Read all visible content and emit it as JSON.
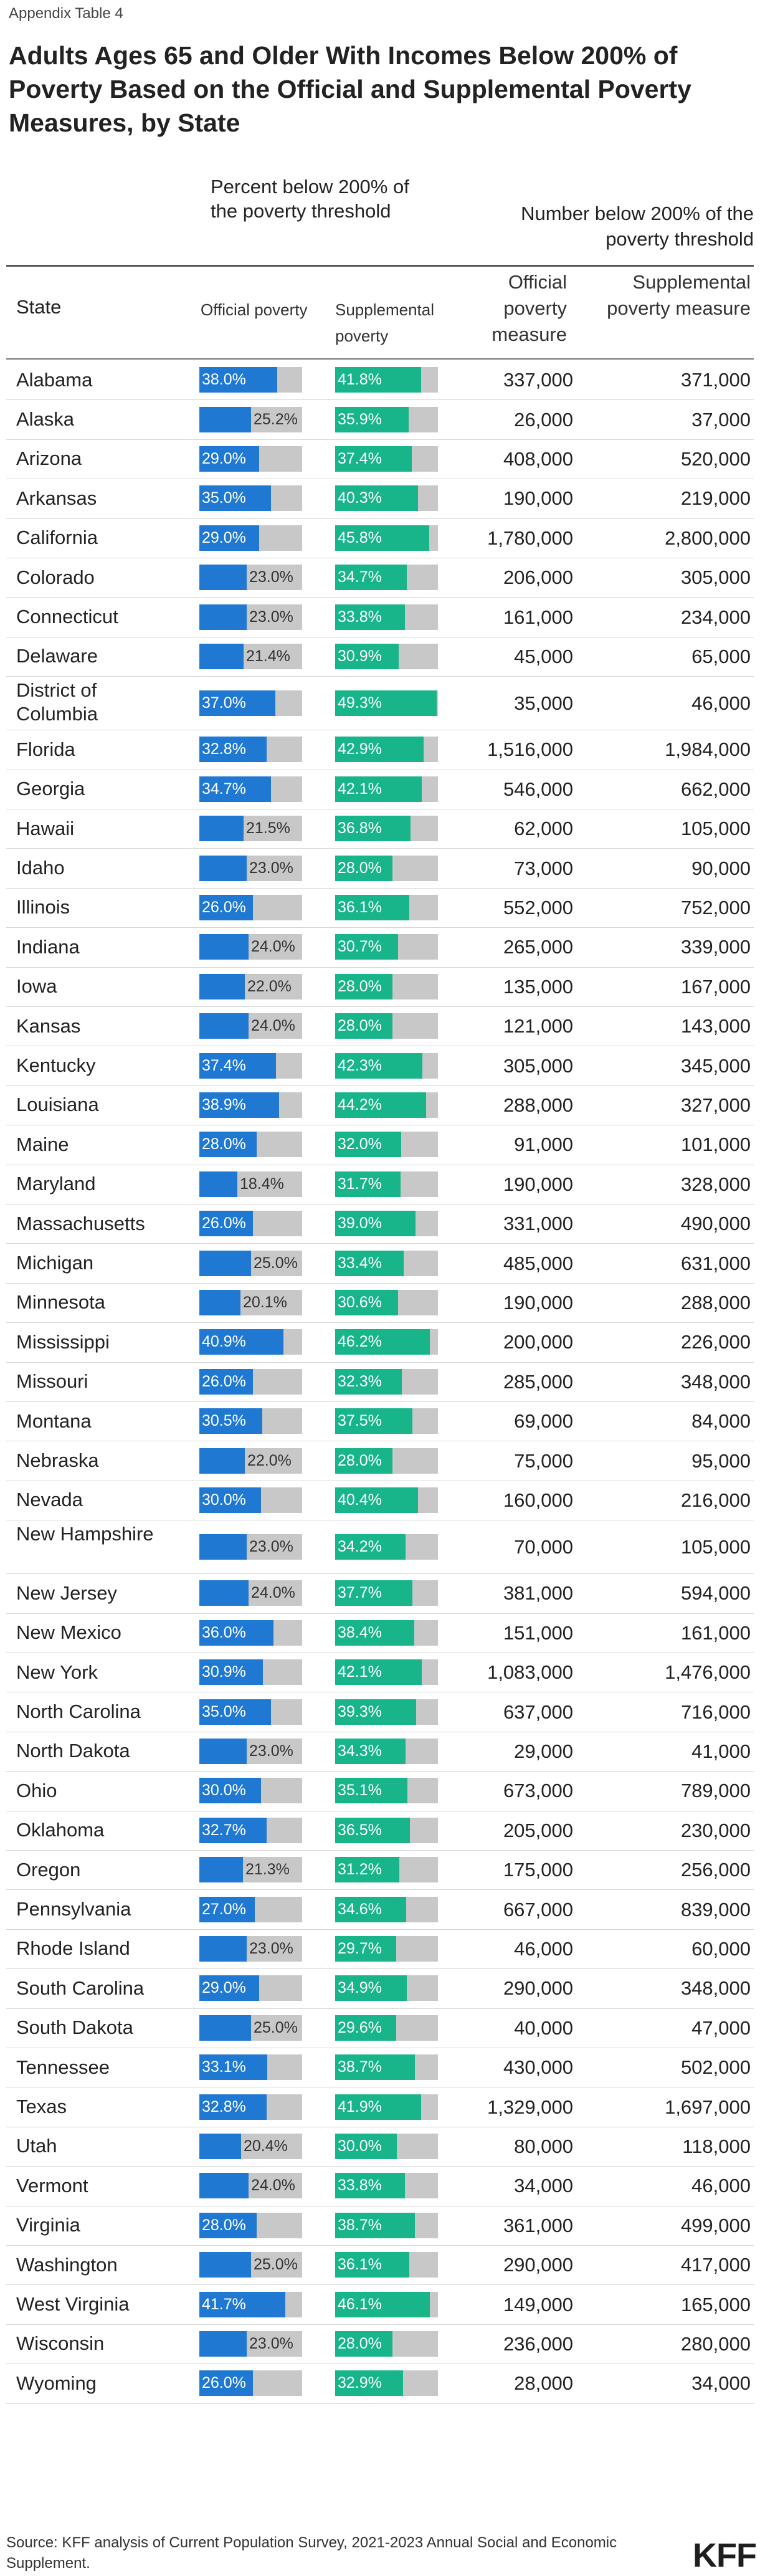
{
  "appendix": "Appendix Table 4",
  "title": "Adults Ages 65 and Older With Incomes Below 200% of Poverty Based on the Official and Supplemental Poverty Measures, by State",
  "headers": {
    "percent_group": "Percent below 200% of the poverty threshold",
    "number_group": "Number below 200% of the poverty threshold",
    "state": "State",
    "official_poverty": "Official poverty",
    "supplemental_poverty": "Supplemental poverty",
    "official_measure": "Official poverty measure",
    "supplemental_measure": "Supplemental poverty measure"
  },
  "colors": {
    "official": "#1f78d1",
    "supplemental": "#18b48a",
    "bar_track": "#c8c8c8"
  },
  "chart_data": {
    "type": "table",
    "title": "Adults Ages 65 and Older With Incomes Below 200% of Poverty Based on the Official and Supplemental Poverty Measures, by State",
    "bar_scale_max_percent": 50,
    "columns": [
      "State",
      "Official poverty (%)",
      "Supplemental poverty (%)",
      "Official poverty measure",
      "Supplemental poverty measure"
    ],
    "rows": [
      {
        "state": "Alabama",
        "official_pct": "38.0%",
        "official_val": 38.0,
        "supp_pct": "41.8%",
        "supp_val": 41.8,
        "official_num": "337,000",
        "supp_num": "371,000"
      },
      {
        "state": "Alaska",
        "official_pct": "25.2%",
        "official_val": 25.2,
        "supp_pct": "35.9%",
        "supp_val": 35.9,
        "official_num": "26,000",
        "supp_num": "37,000"
      },
      {
        "state": "Arizona",
        "official_pct": "29.0%",
        "official_val": 29.0,
        "supp_pct": "37.4%",
        "supp_val": 37.4,
        "official_num": "408,000",
        "supp_num": "520,000"
      },
      {
        "state": "Arkansas",
        "official_pct": "35.0%",
        "official_val": 35.0,
        "supp_pct": "40.3%",
        "supp_val": 40.3,
        "official_num": "190,000",
        "supp_num": "219,000"
      },
      {
        "state": "California",
        "official_pct": "29.0%",
        "official_val": 29.0,
        "supp_pct": "45.8%",
        "supp_val": 45.8,
        "official_num": "1,780,000",
        "supp_num": "2,800,000"
      },
      {
        "state": "Colorado",
        "official_pct": "23.0%",
        "official_val": 23.0,
        "supp_pct": "34.7%",
        "supp_val": 34.7,
        "official_num": "206,000",
        "supp_num": "305,000"
      },
      {
        "state": "Connecticut",
        "official_pct": "23.0%",
        "official_val": 23.0,
        "supp_pct": "33.8%",
        "supp_val": 33.8,
        "official_num": "161,000",
        "supp_num": "234,000"
      },
      {
        "state": "Delaware",
        "official_pct": "21.4%",
        "official_val": 21.4,
        "supp_pct": "30.9%",
        "supp_val": 30.9,
        "official_num": "45,000",
        "supp_num": "65,000"
      },
      {
        "state": "District of Columbia",
        "official_pct": "37.0%",
        "official_val": 37.0,
        "supp_pct": "49.3%",
        "supp_val": 49.3,
        "official_num": "35,000",
        "supp_num": "46,000"
      },
      {
        "state": "Florida",
        "official_pct": "32.8%",
        "official_val": 32.8,
        "supp_pct": "42.9%",
        "supp_val": 42.9,
        "official_num": "1,516,000",
        "supp_num": "1,984,000"
      },
      {
        "state": "Georgia",
        "official_pct": "34.7%",
        "official_val": 34.7,
        "supp_pct": "42.1%",
        "supp_val": 42.1,
        "official_num": "546,000",
        "supp_num": "662,000"
      },
      {
        "state": "Hawaii",
        "official_pct": "21.5%",
        "official_val": 21.5,
        "supp_pct": "36.8%",
        "supp_val": 36.8,
        "official_num": "62,000",
        "supp_num": "105,000"
      },
      {
        "state": "Idaho",
        "official_pct": "23.0%",
        "official_val": 23.0,
        "supp_pct": "28.0%",
        "supp_val": 28.0,
        "official_num": "73,000",
        "supp_num": "90,000"
      },
      {
        "state": "Illinois",
        "official_pct": "26.0%",
        "official_val": 26.0,
        "supp_pct": "36.1%",
        "supp_val": 36.1,
        "official_num": "552,000",
        "supp_num": "752,000"
      },
      {
        "state": "Indiana",
        "official_pct": "24.0%",
        "official_val": 24.0,
        "supp_pct": "30.7%",
        "supp_val": 30.7,
        "official_num": "265,000",
        "supp_num": "339,000"
      },
      {
        "state": "Iowa",
        "official_pct": "22.0%",
        "official_val": 22.0,
        "supp_pct": "28.0%",
        "supp_val": 28.0,
        "official_num": "135,000",
        "supp_num": "167,000"
      },
      {
        "state": "Kansas",
        "official_pct": "24.0%",
        "official_val": 24.0,
        "supp_pct": "28.0%",
        "supp_val": 28.0,
        "official_num": "121,000",
        "supp_num": "143,000"
      },
      {
        "state": "Kentucky",
        "official_pct": "37.4%",
        "official_val": 37.4,
        "supp_pct": "42.3%",
        "supp_val": 42.3,
        "official_num": "305,000",
        "supp_num": "345,000"
      },
      {
        "state": "Louisiana",
        "official_pct": "38.9%",
        "official_val": 38.9,
        "supp_pct": "44.2%",
        "supp_val": 44.2,
        "official_num": "288,000",
        "supp_num": "327,000"
      },
      {
        "state": "Maine",
        "official_pct": "28.0%",
        "official_val": 28.0,
        "supp_pct": "32.0%",
        "supp_val": 32.0,
        "official_num": "91,000",
        "supp_num": "101,000"
      },
      {
        "state": "Maryland",
        "official_pct": "18.4%",
        "official_val": 18.4,
        "supp_pct": "31.7%",
        "supp_val": 31.7,
        "official_num": "190,000",
        "supp_num": "328,000"
      },
      {
        "state": "Massachusetts",
        "official_pct": "26.0%",
        "official_val": 26.0,
        "supp_pct": "39.0%",
        "supp_val": 39.0,
        "official_num": "331,000",
        "supp_num": "490,000"
      },
      {
        "state": "Michigan",
        "official_pct": "25.0%",
        "official_val": 25.0,
        "supp_pct": "33.4%",
        "supp_val": 33.4,
        "official_num": "485,000",
        "supp_num": "631,000"
      },
      {
        "state": "Minnesota",
        "official_pct": "20.1%",
        "official_val": 20.1,
        "supp_pct": "30.6%",
        "supp_val": 30.6,
        "official_num": "190,000",
        "supp_num": "288,000"
      },
      {
        "state": "Mississippi",
        "official_pct": "40.9%",
        "official_val": 40.9,
        "supp_pct": "46.2%",
        "supp_val": 46.2,
        "official_num": "200,000",
        "supp_num": "226,000"
      },
      {
        "state": "Missouri",
        "official_pct": "26.0%",
        "official_val": 26.0,
        "supp_pct": "32.3%",
        "supp_val": 32.3,
        "official_num": "285,000",
        "supp_num": "348,000"
      },
      {
        "state": "Montana",
        "official_pct": "30.5%",
        "official_val": 30.5,
        "supp_pct": "37.5%",
        "supp_val": 37.5,
        "official_num": "69,000",
        "supp_num": "84,000"
      },
      {
        "state": "Nebraska",
        "official_pct": "22.0%",
        "official_val": 22.0,
        "supp_pct": "28.0%",
        "supp_val": 28.0,
        "official_num": "75,000",
        "supp_num": "95,000"
      },
      {
        "state": "Nevada",
        "official_pct": "30.0%",
        "official_val": 30.0,
        "supp_pct": "40.4%",
        "supp_val": 40.4,
        "official_num": "160,000",
        "supp_num": "216,000"
      },
      {
        "state": "New Hampshire",
        "official_pct": "23.0%",
        "official_val": 23.0,
        "supp_pct": "34.2%",
        "supp_val": 34.2,
        "official_num": "70,000",
        "supp_num": "105,000"
      },
      {
        "state": "New Jersey",
        "official_pct": "24.0%",
        "official_val": 24.0,
        "supp_pct": "37.7%",
        "supp_val": 37.7,
        "official_num": "381,000",
        "supp_num": "594,000"
      },
      {
        "state": "New Mexico",
        "official_pct": "36.0%",
        "official_val": 36.0,
        "supp_pct": "38.4%",
        "supp_val": 38.4,
        "official_num": "151,000",
        "supp_num": "161,000"
      },
      {
        "state": "New York",
        "official_pct": "30.9%",
        "official_val": 30.9,
        "supp_pct": "42.1%",
        "supp_val": 42.1,
        "official_num": "1,083,000",
        "supp_num": "1,476,000"
      },
      {
        "state": "North Carolina",
        "official_pct": "35.0%",
        "official_val": 35.0,
        "supp_pct": "39.3%",
        "supp_val": 39.3,
        "official_num": "637,000",
        "supp_num": "716,000"
      },
      {
        "state": "North Dakota",
        "official_pct": "23.0%",
        "official_val": 23.0,
        "supp_pct": "34.3%",
        "supp_val": 34.3,
        "official_num": "29,000",
        "supp_num": "41,000"
      },
      {
        "state": "Ohio",
        "official_pct": "30.0%",
        "official_val": 30.0,
        "supp_pct": "35.1%",
        "supp_val": 35.1,
        "official_num": "673,000",
        "supp_num": "789,000"
      },
      {
        "state": "Oklahoma",
        "official_pct": "32.7%",
        "official_val": 32.7,
        "supp_pct": "36.5%",
        "supp_val": 36.5,
        "official_num": "205,000",
        "supp_num": "230,000"
      },
      {
        "state": "Oregon",
        "official_pct": "21.3%",
        "official_val": 21.3,
        "supp_pct": "31.2%",
        "supp_val": 31.2,
        "official_num": "175,000",
        "supp_num": "256,000"
      },
      {
        "state": "Pennsylvania",
        "official_pct": "27.0%",
        "official_val": 27.0,
        "supp_pct": "34.6%",
        "supp_val": 34.6,
        "official_num": "667,000",
        "supp_num": "839,000"
      },
      {
        "state": "Rhode Island",
        "official_pct": "23.0%",
        "official_val": 23.0,
        "supp_pct": "29.7%",
        "supp_val": 29.7,
        "official_num": "46,000",
        "supp_num": "60,000"
      },
      {
        "state": "South Carolina",
        "official_pct": "29.0%",
        "official_val": 29.0,
        "supp_pct": "34.9%",
        "supp_val": 34.9,
        "official_num": "290,000",
        "supp_num": "348,000"
      },
      {
        "state": "South Dakota",
        "official_pct": "25.0%",
        "official_val": 25.0,
        "supp_pct": "29.6%",
        "supp_val": 29.6,
        "official_num": "40,000",
        "supp_num": "47,000"
      },
      {
        "state": "Tennessee",
        "official_pct": "33.1%",
        "official_val": 33.1,
        "supp_pct": "38.7%",
        "supp_val": 38.7,
        "official_num": "430,000",
        "supp_num": "502,000"
      },
      {
        "state": "Texas",
        "official_pct": "32.8%",
        "official_val": 32.8,
        "supp_pct": "41.9%",
        "supp_val": 41.9,
        "official_num": "1,329,000",
        "supp_num": "1,697,000"
      },
      {
        "state": "Utah",
        "official_pct": "20.4%",
        "official_val": 20.4,
        "supp_pct": "30.0%",
        "supp_val": 30.0,
        "official_num": "80,000",
        "supp_num": "118,000"
      },
      {
        "state": "Vermont",
        "official_pct": "24.0%",
        "official_val": 24.0,
        "supp_pct": "33.8%",
        "supp_val": 33.8,
        "official_num": "34,000",
        "supp_num": "46,000"
      },
      {
        "state": "Virginia",
        "official_pct": "28.0%",
        "official_val": 28.0,
        "supp_pct": "38.7%",
        "supp_val": 38.7,
        "official_num": "361,000",
        "supp_num": "499,000"
      },
      {
        "state": "Washington",
        "official_pct": "25.0%",
        "official_val": 25.0,
        "supp_pct": "36.1%",
        "supp_val": 36.1,
        "official_num": "290,000",
        "supp_num": "417,000"
      },
      {
        "state": "West Virginia",
        "official_pct": "41.7%",
        "official_val": 41.7,
        "supp_pct": "46.1%",
        "supp_val": 46.1,
        "official_num": "149,000",
        "supp_num": "165,000"
      },
      {
        "state": "Wisconsin",
        "official_pct": "23.0%",
        "official_val": 23.0,
        "supp_pct": "28.0%",
        "supp_val": 28.0,
        "official_num": "236,000",
        "supp_num": "280,000"
      },
      {
        "state": "Wyoming",
        "official_pct": "26.0%",
        "official_val": 26.0,
        "supp_pct": "32.9%",
        "supp_val": 32.9,
        "official_num": "28,000",
        "supp_num": "34,000"
      }
    ]
  },
  "source": "Source: KFF analysis of Current Population Survey, 2021-2023 Annual Social and Economic Supplement.",
  "logo": "KFF"
}
